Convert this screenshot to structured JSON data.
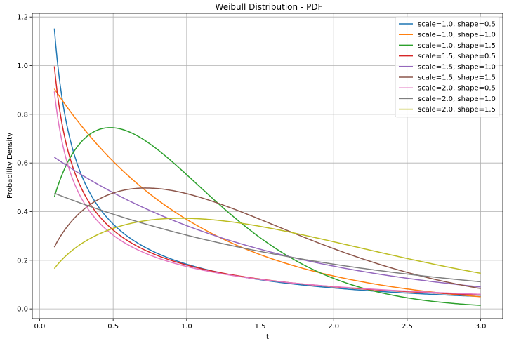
{
  "chart_data": {
    "type": "line",
    "title": "Weibull Distribution - PDF",
    "xlabel": "t",
    "ylabel": "Probability Density",
    "xlim": [
      -0.05,
      3.15
    ],
    "ylim": [
      -0.04,
      1.215
    ],
    "x_ticks": [
      0.0,
      0.5,
      1.0,
      1.5,
      2.0,
      2.5,
      3.0
    ],
    "x_tick_labels": [
      "0.0",
      "0.5",
      "1.0",
      "1.5",
      "2.0",
      "2.5",
      "3.0"
    ],
    "y_ticks": [
      0.0,
      0.2,
      0.4,
      0.6,
      0.8,
      1.0,
      1.2
    ],
    "y_tick_labels": [
      "0.0",
      "0.2",
      "0.4",
      "0.6",
      "0.8",
      "1.0",
      "1.2"
    ],
    "grid": true,
    "legend_position": "top-right",
    "x_range": [
      0.1,
      3.0
    ],
    "series": [
      {
        "name": "scale=1.0, shape=0.5",
        "scale": 1.0,
        "shape": 0.5,
        "color": "#1f77b4"
      },
      {
        "name": "scale=1.0, shape=1.0",
        "scale": 1.0,
        "shape": 1.0,
        "color": "#ff7f0e"
      },
      {
        "name": "scale=1.0, shape=1.5",
        "scale": 1.0,
        "shape": 1.5,
        "color": "#2ca02c"
      },
      {
        "name": "scale=1.5, shape=0.5",
        "scale": 1.5,
        "shape": 0.5,
        "color": "#d62728"
      },
      {
        "name": "scale=1.5, shape=1.0",
        "scale": 1.5,
        "shape": 1.0,
        "color": "#9467bd"
      },
      {
        "name": "scale=1.5, shape=1.5",
        "scale": 1.5,
        "shape": 1.5,
        "color": "#8c564b"
      },
      {
        "name": "scale=2.0, shape=0.5",
        "scale": 2.0,
        "shape": 0.5,
        "color": "#e377c2"
      },
      {
        "name": "scale=2.0, shape=1.0",
        "scale": 2.0,
        "shape": 1.0,
        "color": "#7f7f7f"
      },
      {
        "name": "scale=2.0, shape=1.5",
        "scale": 2.0,
        "shape": 1.5,
        "color": "#bcbd22"
      }
    ]
  }
}
